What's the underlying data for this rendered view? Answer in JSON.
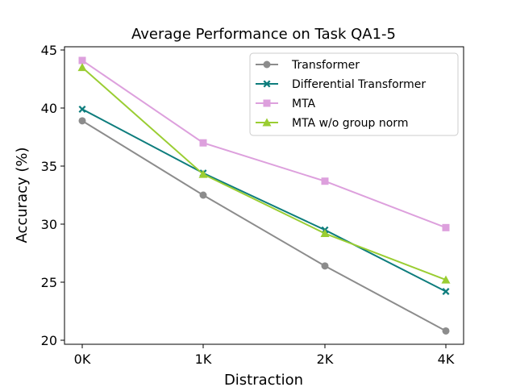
{
  "chart_data": {
    "type": "line",
    "title": "Average Performance on Task QA1-5",
    "xlabel": "Distraction",
    "ylabel": "Accuracy (%)",
    "categories": [
      "0K",
      "1K",
      "2K",
      "4K"
    ],
    "ylim": [
      20,
      45
    ],
    "yticks": [
      20,
      25,
      30,
      35,
      40,
      45
    ],
    "grid": false,
    "legend_position": "top-right",
    "series": [
      {
        "name": "Transformer",
        "values": [
          38.9,
          32.5,
          26.4,
          20.8
        ],
        "color": "#8c8c8c",
        "marker": "circle"
      },
      {
        "name": "Differential Transformer",
        "values": [
          39.9,
          34.4,
          29.5,
          24.2
        ],
        "color": "#0e7d7d",
        "marker": "x"
      },
      {
        "name": "MTA",
        "values": [
          44.1,
          37.0,
          33.7,
          29.7
        ],
        "color": "#dda0dd",
        "marker": "square"
      },
      {
        "name": "MTA w/o group norm",
        "values": [
          43.5,
          34.3,
          29.2,
          25.2
        ],
        "color": "#9acd32",
        "marker": "triangle"
      }
    ]
  }
}
